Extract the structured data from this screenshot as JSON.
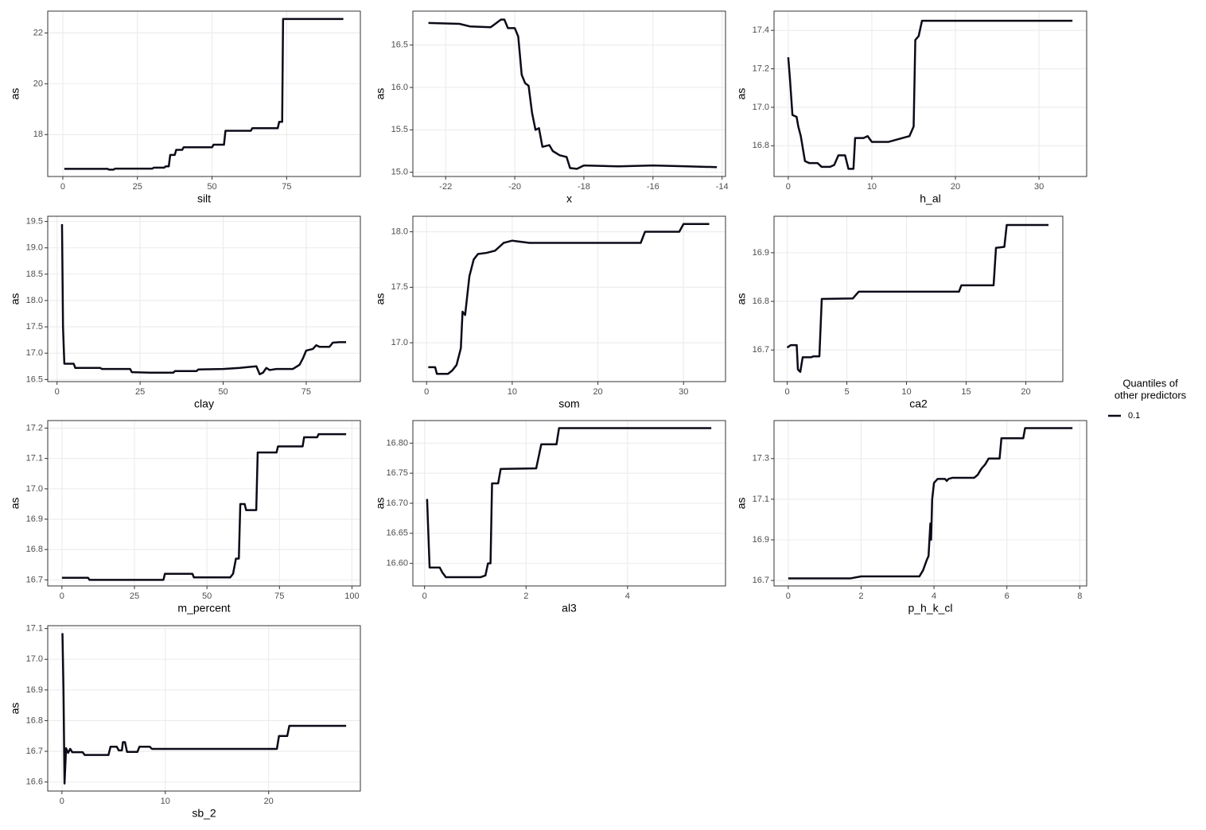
{
  "chart_data": [
    {
      "type": "line",
      "x_label": "silt",
      "y_label": "as",
      "grid": true,
      "x": [
        0.5,
        15,
        15.5,
        17,
        17.5,
        30,
        30.5,
        34,
        34.5,
        35.5,
        36,
        37.5,
        38,
        40,
        40.5,
        50,
        50.5,
        54,
        54.5,
        63,
        63.5,
        72,
        72.5,
        73.5,
        73.8,
        94
      ],
      "values": [
        16.65,
        16.65,
        16.62,
        16.62,
        16.66,
        16.66,
        16.7,
        16.7,
        16.75,
        16.75,
        17.2,
        17.2,
        17.4,
        17.4,
        17.5,
        17.5,
        17.6,
        17.6,
        18.15,
        18.15,
        18.25,
        18.25,
        18.5,
        18.5,
        22.55,
        22.55
      ],
      "xlim": [
        -5.05,
        99.7
      ],
      "ylim": [
        16.35,
        22.86
      ],
      "xticks": [
        0,
        25,
        50,
        75
      ],
      "yticks": [
        18,
        20,
        22
      ]
    },
    {
      "type": "line",
      "x_label": "x",
      "y_label": "as",
      "grid": true,
      "x": [
        -22.5,
        -21.6,
        -21.3,
        -20.7,
        -20.6,
        -20.4,
        -20.3,
        -20.2,
        -20.0,
        -19.9,
        -19.8,
        -19.7,
        -19.6,
        -19.5,
        -19.4,
        -19.3,
        -19.2,
        -19.0,
        -18.9,
        -18.7,
        -18.5,
        -18.4,
        -18.2,
        -18.0,
        -17.0,
        -16.0,
        -15.0,
        -14.15
      ],
      "values": [
        16.76,
        16.75,
        16.72,
        16.71,
        16.74,
        16.8,
        16.8,
        16.7,
        16.7,
        16.6,
        16.15,
        16.05,
        16.02,
        15.7,
        15.5,
        15.52,
        15.3,
        15.32,
        15.25,
        15.2,
        15.18,
        15.05,
        15.04,
        15.08,
        15.07,
        15.08,
        15.07,
        15.06
      ],
      "xlim": [
        -22.95,
        -13.9
      ],
      "ylim": [
        14.95,
        16.9
      ],
      "xticks": [
        -22,
        -20,
        -18,
        -16,
        -14
      ],
      "yticks": [
        {
          "value": 15,
          "label": "15.0"
        },
        15.5,
        {
          "value": 16,
          "label": "16.0"
        },
        16.5
      ]
    },
    {
      "type": "line",
      "x_label": "h_al",
      "y_label": "as",
      "grid": true,
      "x": [
        0,
        0.2,
        0.5,
        1.0,
        1.2,
        1.5,
        2,
        2.5,
        3.5,
        4,
        5,
        5.5,
        6,
        6.8,
        7.2,
        7.8,
        8,
        9,
        9.5,
        10,
        12,
        14.5,
        15,
        15.2,
        15.6,
        16,
        22,
        34
      ],
      "values": [
        17.26,
        17.15,
        16.96,
        16.95,
        16.9,
        16.85,
        16.72,
        16.71,
        16.71,
        16.69,
        16.69,
        16.7,
        16.75,
        16.75,
        16.68,
        16.68,
        16.84,
        16.84,
        16.85,
        16.82,
        16.82,
        16.85,
        16.9,
        17.35,
        17.37,
        17.45,
        17.45,
        17.45
      ],
      "xlim": [
        -1.7,
        35.7
      ],
      "ylim": [
        16.64,
        17.5
      ],
      "xticks": [
        0,
        10,
        20,
        30
      ],
      "yticks": [
        16.8,
        {
          "value": 17,
          "label": "17.0"
        },
        17.2,
        17.4
      ]
    },
    {
      "type": "line",
      "x_label": "clay",
      "y_label": "as",
      "grid": true,
      "x": [
        1.5,
        1.8,
        2.2,
        5,
        5.5,
        13,
        13.5,
        22,
        22.5,
        28,
        35,
        35.5,
        42,
        42.5,
        50,
        55,
        58,
        60,
        61,
        62,
        63,
        64,
        66,
        71,
        73,
        74,
        75,
        77,
        78,
        79,
        82,
        83,
        85,
        87
      ],
      "values": [
        19.45,
        17.5,
        16.8,
        16.8,
        16.72,
        16.72,
        16.7,
        16.7,
        16.64,
        16.63,
        16.63,
        16.66,
        16.66,
        16.69,
        16.7,
        16.72,
        16.74,
        16.75,
        16.6,
        16.63,
        16.72,
        16.68,
        16.7,
        16.7,
        16.78,
        16.9,
        17.05,
        17.08,
        17.15,
        17.12,
        17.12,
        17.2,
        17.21,
        17.21
      ],
      "xlim": [
        -2.8,
        91.3
      ],
      "ylim": [
        16.46,
        19.6
      ],
      "xticks": [
        0,
        25,
        50,
        75
      ],
      "yticks": [
        16.5,
        {
          "value": 17,
          "label": "17.0"
        },
        17.5,
        {
          "value": 18,
          "label": "18.0"
        },
        18.5,
        {
          "value": 19,
          "label": "19.0"
        },
        19.5
      ]
    },
    {
      "type": "line",
      "x_label": "som",
      "y_label": "as",
      "grid": true,
      "x": [
        0.2,
        1,
        1.2,
        2.5,
        3,
        3.5,
        4,
        4.2,
        4.5,
        5,
        5.5,
        6,
        7,
        8,
        9,
        10,
        11,
        12,
        25,
        25.5,
        29.5,
        30,
        33
      ],
      "values": [
        16.78,
        16.78,
        16.72,
        16.72,
        16.75,
        16.8,
        16.95,
        17.28,
        17.25,
        17.6,
        17.75,
        17.8,
        17.81,
        17.83,
        17.9,
        17.92,
        17.91,
        17.9,
        17.9,
        18.0,
        18.0,
        18.07,
        18.07
      ],
      "xlim": [
        -1.6,
        34.9
      ],
      "ylim": [
        16.65,
        18.14
      ],
      "xticks": [
        0,
        10,
        20,
        30
      ],
      "yticks": [
        {
          "value": 17,
          "label": "17.0"
        },
        17.5,
        {
          "value": 18,
          "label": "18.0"
        }
      ]
    },
    {
      "type": "line",
      "x_label": "ca2",
      "y_label": "as",
      "grid": true,
      "x": [
        0,
        0.3,
        0.8,
        0.9,
        1.1,
        1.3,
        2,
        2.2,
        2.7,
        2.9,
        5.5,
        6,
        14.4,
        14.6,
        17.3,
        17.5,
        18.2,
        18.4,
        21.9
      ],
      "values": [
        16.705,
        16.71,
        16.71,
        16.66,
        16.655,
        16.685,
        16.685,
        16.687,
        16.687,
        16.805,
        16.806,
        16.82,
        16.82,
        16.833,
        16.833,
        16.91,
        16.912,
        16.957,
        16.957
      ],
      "xlim": [
        -1.1,
        23.1
      ],
      "ylim": [
        16.635,
        16.975
      ],
      "xticks": [
        0,
        5,
        10,
        15,
        20
      ],
      "yticks": [
        16.7,
        16.8,
        16.9
      ]
    },
    {
      "type": "line",
      "x_label": "m_percent",
      "y_label": "as",
      "grid": true,
      "x": [
        0,
        9,
        9.5,
        35,
        35.5,
        45,
        45.5,
        58,
        59,
        60,
        61,
        61.5,
        63,
        63.5,
        67,
        67.5,
        74,
        74.5,
        83,
        83.5,
        88,
        88.5,
        98
      ],
      "values": [
        16.707,
        16.707,
        16.7,
        16.7,
        16.72,
        16.72,
        16.708,
        16.708,
        16.72,
        16.77,
        16.77,
        16.95,
        16.95,
        16.93,
        16.93,
        17.12,
        17.12,
        17.14,
        17.14,
        17.17,
        17.17,
        17.18,
        17.18
      ],
      "xlim": [
        -4.9,
        102.9
      ],
      "ylim": [
        16.68,
        17.225
      ],
      "xticks": [
        0,
        25,
        50,
        75,
        100
      ],
      "yticks": [
        16.7,
        16.8,
        16.9,
        {
          "value": 17,
          "label": "17.0"
        },
        17.1,
        17.2
      ]
    },
    {
      "type": "line",
      "x_label": "al3",
      "y_label": "as",
      "grid": true,
      "x": [
        0.05,
        0.1,
        0.3,
        0.35,
        0.42,
        1.1,
        1.2,
        1.25,
        1.3,
        1.33,
        1.45,
        1.5,
        2.2,
        2.3,
        2.6,
        2.65,
        5.65
      ],
      "values": [
        16.707,
        16.593,
        16.593,
        16.585,
        16.577,
        16.577,
        16.58,
        16.6,
        16.6,
        16.733,
        16.733,
        16.757,
        16.758,
        16.798,
        16.798,
        16.825,
        16.825
      ],
      "xlim": [
        -0.23,
        5.93
      ],
      "ylim": [
        16.5625,
        16.8375
      ],
      "xticks": [
        0,
        2,
        4
      ],
      "yticks": [
        {
          "value": 16.6,
          "label": "16.60"
        },
        16.65,
        {
          "value": 16.7,
          "label": "16.70"
        },
        16.75,
        {
          "value": 16.8,
          "label": "16.80"
        }
      ]
    },
    {
      "type": "line",
      "x_label": "p_h_k_cl",
      "y_label": "as",
      "grid": true,
      "x": [
        0,
        1.7,
        2,
        3.6,
        3.7,
        3.8,
        3.85,
        3.9,
        3.92,
        3.95,
        4.0,
        4.1,
        4.3,
        4.35,
        4.4,
        4.5,
        5.1,
        5.2,
        5.3,
        5.4,
        5.5,
        5.8,
        5.85,
        6.45,
        6.5,
        7.8
      ],
      "values": [
        16.71,
        16.71,
        16.72,
        16.72,
        16.75,
        16.8,
        16.82,
        16.98,
        16.9,
        17.1,
        17.18,
        17.2,
        17.2,
        17.19,
        17.2,
        17.205,
        17.205,
        17.22,
        17.25,
        17.27,
        17.3,
        17.3,
        17.4,
        17.4,
        17.45,
        17.45
      ],
      "xlim": [
        -0.39,
        8.19
      ],
      "ylim": [
        16.673,
        17.487
      ],
      "xticks": [
        0,
        2,
        4,
        6,
        8
      ],
      "yticks": [
        16.7,
        16.9,
        17.1,
        17.3
      ]
    },
    {
      "type": "line",
      "x_label": "sb_2",
      "y_label": "as",
      "grid": true,
      "x": [
        0.05,
        0.15,
        0.25,
        0.4,
        0.6,
        0.8,
        1.0,
        2,
        2.2,
        4.5,
        4.7,
        5.3,
        5.5,
        5.8,
        5.9,
        6.1,
        6.3,
        7.3,
        7.5,
        8.5,
        8.7,
        20.8,
        21,
        21.8,
        22,
        27.5
      ],
      "values": [
        17.085,
        16.9,
        16.595,
        16.71,
        16.695,
        16.708,
        16.697,
        16.697,
        16.688,
        16.688,
        16.715,
        16.715,
        16.703,
        16.703,
        16.73,
        16.73,
        16.698,
        16.698,
        16.715,
        16.715,
        16.708,
        16.708,
        16.75,
        16.75,
        16.783,
        16.783
      ],
      "xlim": [
        -1.375,
        28.875
      ],
      "ylim": [
        16.5705,
        17.1095
      ],
      "xticks": [
        0,
        10,
        20
      ],
      "yticks": [
        16.6,
        16.7,
        16.8,
        16.9,
        {
          "value": 17,
          "label": "17.0"
        },
        17.1
      ]
    }
  ],
  "legend": {
    "title_lines": [
      "Quantiles of",
      "other predictors"
    ],
    "name": "0.1",
    "color": "#0b0b18"
  }
}
